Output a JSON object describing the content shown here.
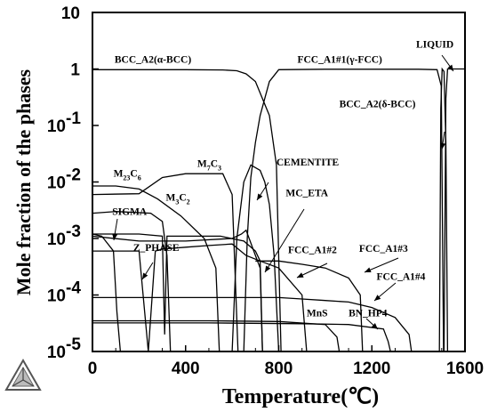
{
  "chart_data": {
    "type": "line",
    "xlabel": "Temperature(℃)",
    "ylabel": "Mole fraction of the phases",
    "xlim": [
      0,
      1600
    ],
    "ylim": [
      1e-05,
      10
    ],
    "yscale": "log",
    "x_ticks": [
      {
        "value": 0,
        "label": "0"
      },
      {
        "value": 400,
        "label": "400"
      },
      {
        "value": 800,
        "label": "800"
      },
      {
        "value": 1200,
        "label": "1200"
      },
      {
        "value": 1600,
        "label": "1600"
      }
    ],
    "y_ticks": [
      {
        "value": 10,
        "base": "10",
        "exp": ""
      },
      {
        "value": 1,
        "base": "1",
        "exp": ""
      },
      {
        "value": 0.1,
        "base": "10",
        "exp": "-1"
      },
      {
        "value": 0.01,
        "base": "10",
        "exp": "-2"
      },
      {
        "value": 0.001,
        "base": "10",
        "exp": "-3"
      },
      {
        "value": 0.0001,
        "base": "10",
        "exp": "-4"
      },
      {
        "value": 1e-05,
        "base": "10",
        "exp": "-5"
      }
    ],
    "series": [
      {
        "name": "BCC_A2(α-BCC)",
        "x": [
          0,
          200,
          400,
          560,
          620,
          660,
          700,
          760,
          790,
          810
        ],
        "y": [
          0.97,
          0.97,
          0.97,
          0.96,
          0.93,
          0.82,
          0.6,
          0.15,
          0.02,
          1e-05
        ]
      },
      {
        "name": "FCC_A1#1(γ-FCC)",
        "x": [
          650,
          665,
          680,
          700,
          720,
          760,
          800,
          1000,
          1200,
          1400,
          1480,
          1498,
          1508
        ],
        "y": [
          1e-05,
          0.001,
          0.012,
          0.05,
          0.15,
          0.6,
          0.97,
          0.99,
          0.99,
          0.99,
          0.97,
          0.5,
          1e-05
        ]
      },
      {
        "name": "LIQUID",
        "x": [
          1510,
          1518,
          1525,
          1600
        ],
        "y": [
          1e-05,
          0.3,
          1.0,
          1.0
        ]
      },
      {
        "name": "BCC_A2(δ-BCC)",
        "x": [
          1490,
          1496,
          1502,
          1510,
          1518,
          1525
        ],
        "y": [
          1e-05,
          0.2,
          1.0,
          0.9,
          0.05,
          1e-05
        ]
      },
      {
        "name": "CEMENTITE",
        "x": [
          600,
          620,
          650,
          680,
          720,
          740,
          760,
          780,
          800
        ],
        "y": [
          1e-05,
          0.001,
          0.01,
          0.02,
          0.016,
          0.01,
          0.004,
          0.0005,
          1e-05
        ]
      },
      {
        "name": "M23C6",
        "x": [
          0,
          100,
          200,
          280,
          380,
          480,
          530,
          545
        ],
        "y": [
          0.0085,
          0.0085,
          0.0075,
          0.005,
          0.0025,
          0.001,
          0.0003,
          1e-05
        ]
      },
      {
        "name": "M7C3",
        "x": [
          0,
          200,
          300,
          400,
          500,
          560,
          600,
          625
        ],
        "y": [
          0.006,
          0.0062,
          0.012,
          0.014,
          0.014,
          0.014,
          0.006,
          1e-05
        ]
      },
      {
        "name": "M3C2",
        "x": [
          0,
          100,
          250,
          300,
          320,
          335
        ],
        "y": [
          0.0028,
          0.003,
          0.0028,
          0.002,
          0.0005,
          1e-05
        ]
      },
      {
        "name": "SIGMA",
        "x": [
          0,
          40,
          90,
          105,
          120
        ],
        "y": [
          0.0012,
          0.0011,
          0.0006,
          5e-05,
          1e-05
        ]
      },
      {
        "name": "Z_PHASE",
        "x": [
          0,
          100,
          200,
          240,
          270,
          300,
          400,
          500,
          600,
          660,
          720,
          800,
          900,
          920
        ],
        "y": [
          0.0006,
          0.0006,
          0.0006,
          1e-05,
          0.0006,
          0.00065,
          0.0007,
          0.00075,
          0.0008,
          0.0005,
          0.0004,
          0.0003,
          0.0001,
          1e-05
        ]
      },
      {
        "name": "MC_ETA",
        "x": [
          0,
          200,
          400,
          600,
          640,
          660,
          700,
          720,
          730
        ],
        "y": [
          0.0011,
          0.0009,
          0.0009,
          0.001,
          0.0012,
          0.0014,
          0.0005,
          0.0003,
          1e-05
        ]
      },
      {
        "name": "FCC_A1#2",
        "x": [
          0,
          200,
          300,
          310,
          320,
          400,
          550,
          650,
          700,
          720,
          730
        ],
        "y": [
          0.0012,
          0.0012,
          0.0011,
          2e-05,
          0.0011,
          0.0011,
          0.0011,
          0.0009,
          0.0006,
          0.0004,
          1e-05
        ]
      },
      {
        "name": "FCC_A1#3",
        "x": [
          700,
          800,
          900,
          1000,
          1100,
          1150,
          1160
        ],
        "y": [
          0.0004,
          0.0004,
          0.00035,
          0.0003,
          0.0002,
          0.0001,
          1e-05
        ]
      },
      {
        "name": "FCC_A1#4",
        "x": [
          0,
          400,
          700,
          800,
          900,
          1000,
          1100,
          1200,
          1300,
          1360,
          1370
        ],
        "y": [
          9e-05,
          9e-05,
          9e-05,
          9e-05,
          8.5e-05,
          8e-05,
          7.5e-05,
          6e-05,
          4e-05,
          2e-05,
          1e-05
        ]
      },
      {
        "name": "MnS",
        "x": [
          0,
          500,
          800,
          1000,
          1050,
          1060
        ],
        "y": [
          3.5e-05,
          3.5e-05,
          3.4e-05,
          3e-05,
          1.8e-05,
          1e-05
        ]
      },
      {
        "name": "BN_HP4",
        "x": [
          0,
          500,
          900,
          1100,
          1250,
          1270,
          1280
        ],
        "y": [
          3.2e-05,
          3.2e-05,
          3.1e-05,
          3e-05,
          2.5e-05,
          1.5e-05,
          1e-05
        ]
      }
    ],
    "labels": [
      {
        "text": "BCC_A2(α-BCC)",
        "x": 95,
        "y": 1.3
      },
      {
        "text": "FCC_A1#1(γ-FCC)",
        "x": 880,
        "y": 1.3
      },
      {
        "text": "LIQUID",
        "x": 1390,
        "y": 2.4
      },
      {
        "text": "BCC_A2(δ-BCC)",
        "x": 1060,
        "y": 0.21
      },
      {
        "text": "CEMENTITE",
        "x": 790,
        "y": 0.0195
      },
      {
        "text": "MC_ETA",
        "x": 830,
        "y": 0.0056
      },
      {
        "text": "SIGMA",
        "x": 85,
        "y": 0.0026
      },
      {
        "text": "Z_PHASE",
        "x": 175,
        "y": 0.0006
      },
      {
        "text": "FCC_A1#2",
        "x": 840,
        "y": 0.00055
      },
      {
        "text": "FCC_A1#3",
        "x": 1145,
        "y": 0.00058
      },
      {
        "text": "FCC_A1#4",
        "x": 1220,
        "y": 0.000185
      },
      {
        "text": "MnS",
        "x": 920,
        "y": 4.2e-05
      },
      {
        "text": "BN_HP4",
        "x": 1100,
        "y": 4.2e-05
      }
    ],
    "chem_labels": [
      {
        "base": "M",
        "s1": "23",
        "mid": "C",
        "s2": "6",
        "x": 90,
        "y": 0.0125
      },
      {
        "base": "M",
        "s1": "7",
        "mid": "C",
        "s2": "3",
        "x": 450,
        "y": 0.0185
      },
      {
        "base": "M",
        "s1": "3",
        "mid": "C",
        "s2": "2",
        "x": 315,
        "y": 0.0047
      }
    ],
    "grid": false,
    "legend": "none"
  }
}
